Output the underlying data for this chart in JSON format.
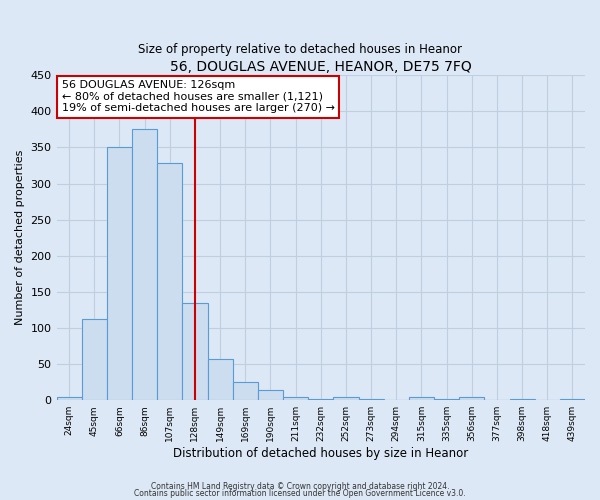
{
  "title": "56, DOUGLAS AVENUE, HEANOR, DE75 7FQ",
  "subtitle": "Size of property relative to detached houses in Heanor",
  "xlabel": "Distribution of detached houses by size in Heanor",
  "ylabel": "Number of detached properties",
  "bin_labels": [
    "24sqm",
    "45sqm",
    "66sqm",
    "86sqm",
    "107sqm",
    "128sqm",
    "149sqm",
    "169sqm",
    "190sqm",
    "211sqm",
    "232sqm",
    "252sqm",
    "273sqm",
    "294sqm",
    "315sqm",
    "335sqm",
    "356sqm",
    "377sqm",
    "398sqm",
    "418sqm",
    "439sqm"
  ],
  "bin_values": [
    5,
    112,
    350,
    375,
    328,
    135,
    57,
    25,
    14,
    5,
    1,
    5,
    1,
    0,
    5,
    1,
    5,
    0,
    2,
    0,
    2
  ],
  "bar_color": "#ccddf0",
  "bar_edge_color": "#5b9bd5",
  "vline_x": 5.5,
  "vline_color": "#cc0000",
  "annotation_line1": "56 DOUGLAS AVENUE: 126sqm",
  "annotation_line2": "← 80% of detached houses are smaller (1,121)",
  "annotation_line3": "19% of semi-detached houses are larger (270) →",
  "annotation_box_color": "#cc0000",
  "ylim": [
    0,
    450
  ],
  "footer_line1": "Contains HM Land Registry data © Crown copyright and database right 2024.",
  "footer_line2": "Contains public sector information licensed under the Open Government Licence v3.0.",
  "background_color": "#dce8f5",
  "plot_background": "#dce8f5",
  "grid_color": "#c0cfe0"
}
